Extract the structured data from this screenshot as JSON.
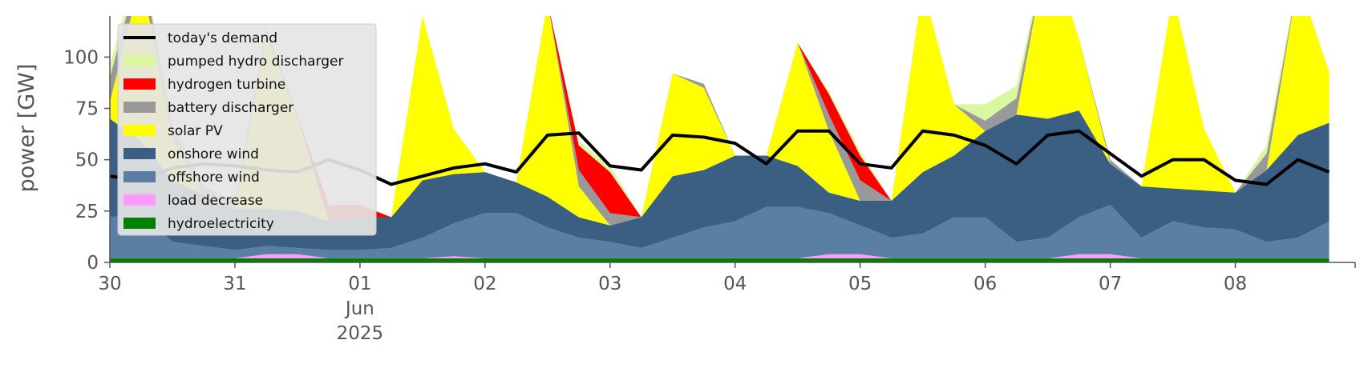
{
  "chart_data": {
    "type": "area",
    "title": "",
    "xlabel": "",
    "ylabel": "power [GW]",
    "ylim": [
      0,
      120
    ],
    "xlim": [
      "2025-05-30T00:00",
      "2025-06-08T23:00"
    ],
    "yticks": [
      0,
      25,
      50,
      75,
      100
    ],
    "xticks": [
      {
        "x": "2025-05-30",
        "lines": [
          "30"
        ]
      },
      {
        "x": "2025-05-31",
        "lines": [
          "31"
        ]
      },
      {
        "x": "2025-06-01",
        "lines": [
          "01",
          "Jun",
          "2025"
        ]
      },
      {
        "x": "2025-06-02",
        "lines": [
          "02"
        ]
      },
      {
        "x": "2025-06-03",
        "lines": [
          "03"
        ]
      },
      {
        "x": "2025-06-04",
        "lines": [
          "04"
        ]
      },
      {
        "x": "2025-06-05",
        "lines": [
          "05"
        ]
      },
      {
        "x": "2025-06-06",
        "lines": [
          "06"
        ]
      },
      {
        "x": "2025-06-07",
        "lines": [
          "07"
        ]
      },
      {
        "x": "2025-06-08",
        "lines": [
          "08"
        ]
      }
    ],
    "grid": false,
    "legend_position": "top-left",
    "legend_order": [
      "today's demand",
      "pumped hydro discharger",
      "hydrogen turbine",
      "battery discharger",
      "solar PV",
      "onshore wind",
      "offshore wind",
      "load decrease",
      "hydroelectricity"
    ],
    "stack_order_bottom_to_top": [
      "hydroelectricity",
      "load decrease",
      "offshore wind",
      "onshore wind",
      "solar PV",
      "battery discharger",
      "hydrogen turbine",
      "pumped hydro discharger"
    ],
    "time_step_hours": 6,
    "x_start": "2025-05-30T00:00",
    "series": [
      {
        "name": "hydroelectricity",
        "color": "#008000",
        "values": [
          2,
          2,
          2,
          2,
          2,
          2,
          2,
          2,
          2,
          2,
          2,
          2,
          2,
          2,
          2,
          2,
          2,
          2,
          2,
          2,
          2,
          2,
          2,
          2,
          2,
          2,
          2,
          2,
          2,
          2,
          2,
          2,
          2,
          2,
          2,
          2,
          2,
          2,
          2,
          2
        ]
      },
      {
        "name": "load decrease",
        "color": "#ff99ff",
        "values": [
          0,
          0,
          0,
          0,
          0,
          2,
          2,
          0,
          0,
          0,
          0,
          1,
          0,
          0,
          0,
          0,
          0,
          0,
          0,
          0,
          0,
          0,
          0,
          2,
          2,
          0,
          0,
          0,
          0,
          0,
          0,
          2,
          2,
          0,
          0,
          0,
          0,
          0,
          0,
          0
        ]
      },
      {
        "name": "offshore wind",
        "color": "#5a7fa3",
        "values": [
          20,
          22,
          8,
          6,
          4,
          4,
          3,
          4,
          4,
          5,
          10,
          16,
          22,
          22,
          15,
          10,
          8,
          5,
          10,
          15,
          18,
          25,
          25,
          20,
          14,
          10,
          12,
          20,
          20,
          8,
          10,
          18,
          24,
          10,
          18,
          15,
          14,
          8,
          10,
          18
        ]
      },
      {
        "name": "onshore wind",
        "color": "#3b5f83",
        "values": [
          48,
          35,
          30,
          25,
          20,
          18,
          18,
          14,
          16,
          15,
          28,
          24,
          20,
          15,
          15,
          10,
          8,
          15,
          30,
          28,
          32,
          25,
          20,
          10,
          12,
          18,
          30,
          30,
          42,
          62,
          58,
          52,
          20,
          25,
          16,
          18,
          18,
          35,
          50,
          48
        ]
      },
      {
        "name": "solar PV",
        "color": "#ffff00",
        "values": [
          8,
          80,
          20,
          0,
          0,
          85,
          45,
          0,
          0,
          0,
          80,
          22,
          0,
          0,
          95,
          15,
          0,
          0,
          50,
          40,
          0,
          0,
          60,
          30,
          0,
          0,
          90,
          25,
          0,
          0,
          85,
          35,
          0,
          0,
          95,
          30,
          0,
          0,
          75,
          25
        ]
      },
      {
        "name": "battery discharger",
        "color": "#999999",
        "values": [
          12,
          8,
          6,
          4,
          4,
          4,
          2,
          0,
          0,
          0,
          0,
          0,
          0,
          0,
          0,
          8,
          6,
          0,
          0,
          2,
          0,
          0,
          0,
          8,
          10,
          0,
          0,
          0,
          5,
          8,
          0,
          0,
          2,
          0,
          0,
          0,
          0,
          8,
          0,
          0
        ]
      },
      {
        "name": "hydrogen turbine",
        "color": "#ff0000",
        "values": [
          0,
          0,
          0,
          0,
          0,
          0,
          0,
          8,
          6,
          0,
          0,
          0,
          0,
          0,
          0,
          12,
          20,
          0,
          0,
          0,
          0,
          0,
          0,
          10,
          12,
          0,
          0,
          0,
          0,
          0,
          0,
          0,
          0,
          0,
          0,
          0,
          0,
          0,
          0,
          0
        ]
      },
      {
        "name": "pumped hydro discharger",
        "color": "#d9f7a0",
        "values": [
          6,
          4,
          2,
          0,
          0,
          0,
          0,
          0,
          0,
          0,
          0,
          0,
          0,
          0,
          0,
          2,
          3,
          0,
          0,
          0,
          0,
          0,
          0,
          1,
          2,
          0,
          0,
          0,
          8,
          6,
          0,
          0,
          0,
          0,
          0,
          0,
          0,
          4,
          2,
          0
        ]
      },
      {
        "name": "today's demand",
        "color": "#000000",
        "type": "line",
        "values": [
          42,
          40,
          46,
          48,
          47,
          45,
          44,
          50,
          45,
          38,
          42,
          46,
          48,
          44,
          62,
          63,
          47,
          45,
          62,
          61,
          58,
          48,
          64,
          64,
          48,
          46,
          64,
          62,
          57,
          48,
          62,
          64,
          53,
          42,
          50,
          50,
          40,
          38,
          50,
          44
        ]
      }
    ]
  }
}
